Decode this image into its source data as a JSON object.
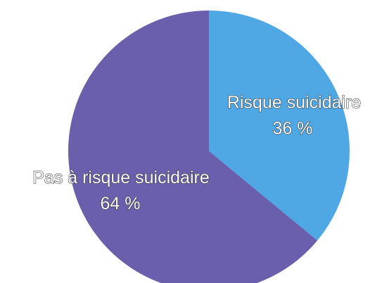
{
  "chart_data": {
    "type": "pie",
    "title": "",
    "slices": [
      {
        "label": "Risque suicidaire",
        "value": 36,
        "value_label": "36 %",
        "color": "#4fa7e4"
      },
      {
        "label": "Pas à risque suicidaire",
        "value": 64,
        "value_label": "64 %",
        "color": "#6a5fac"
      }
    ],
    "start_angle": "12 o'clock",
    "direction": "clockwise",
    "legend": "none",
    "labels_on_slices": true
  }
}
